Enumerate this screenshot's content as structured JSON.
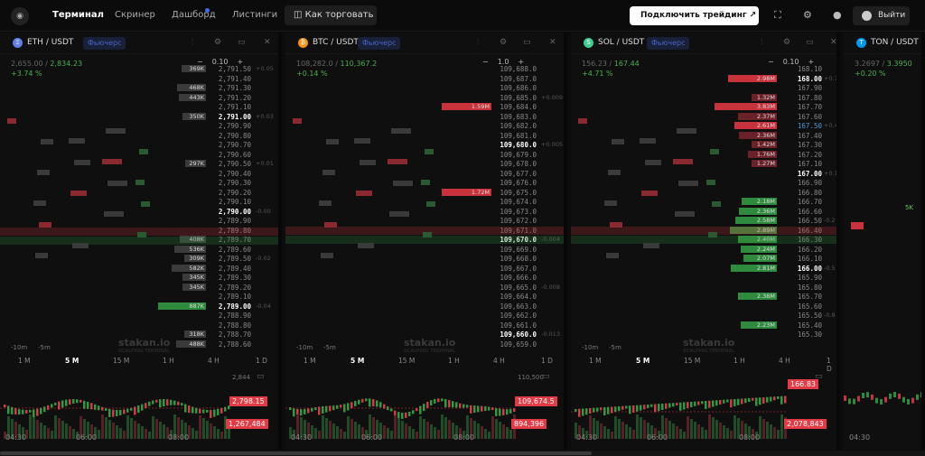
{
  "nav": {
    "terminal": "Терминал",
    "screener": "Скринер",
    "dashboard": "Дашборд",
    "listings": "Листинги",
    "howto": "Как торговать",
    "connect": "Подключить трейдинг",
    "exit": "Выйти"
  },
  "panels": [
    {
      "pair": "ETH / USDT",
      "type": "Фьючерс",
      "low": "2,655.00",
      "high": "2,834.23",
      "change": "+3.74 %",
      "step": "0.10",
      "price_tag": "2,798.15",
      "vol_tag": "1,267,484",
      "corner_price": "2,844",
      "times": [
        "04:30",
        "06:00",
        "08:00"
      ],
      "rows": [
        {
          "p": "2,791.50",
          "v": "369K",
          "c": "+0.05"
        },
        {
          "p": "2,791.40",
          "v": "",
          "c": ""
        },
        {
          "p": "2,791.30",
          "v": "468K",
          "c": ""
        },
        {
          "p": "2,791.20",
          "v": "443K",
          "c": ""
        },
        {
          "p": "2,791.10",
          "v": "",
          "c": ""
        },
        {
          "p": "2,791.00",
          "v": "350K",
          "c": "+0.03",
          "s": "b"
        },
        {
          "p": "2,790.90",
          "v": "",
          "c": ""
        },
        {
          "p": "2,790.80",
          "v": "",
          "c": ""
        },
        {
          "p": "2,790.70",
          "v": "",
          "c": ""
        },
        {
          "p": "2,790.60",
          "v": "",
          "c": ""
        },
        {
          "p": "2,790.50",
          "v": "297K",
          "c": "+0.01"
        },
        {
          "p": "2,790.40",
          "v": "",
          "c": ""
        },
        {
          "p": "2,790.30",
          "v": "",
          "c": ""
        },
        {
          "p": "2,790.20",
          "v": "",
          "c": ""
        },
        {
          "p": "2,790.10",
          "v": "",
          "c": ""
        },
        {
          "p": "2,790.00",
          "v": "",
          "c": "-0.00",
          "s": "b"
        },
        {
          "p": "2,789.90",
          "v": "",
          "c": ""
        },
        {
          "p": "2,789.80",
          "v": "",
          "c": ""
        },
        {
          "p": "2,789.70",
          "v": "408K",
          "c": ""
        },
        {
          "p": "2,789.60",
          "v": "536K",
          "c": ""
        },
        {
          "p": "2,789.50",
          "v": "309K",
          "c": "-0.02"
        },
        {
          "p": "2,789.40",
          "v": "582K",
          "c": ""
        },
        {
          "p": "2,789.30",
          "v": "345K",
          "c": ""
        },
        {
          "p": "2,789.20",
          "v": "345K",
          "c": ""
        },
        {
          "p": "2,789.10",
          "v": "",
          "c": ""
        },
        {
          "p": "2,789.00",
          "v": "887K",
          "c": "-0.04",
          "s": "b"
        },
        {
          "p": "2,788.90",
          "v": "",
          "c": ""
        },
        {
          "p": "2,788.80",
          "v": "",
          "c": ""
        },
        {
          "p": "2,788.70",
          "v": "318K",
          "c": ""
        },
        {
          "p": "2,788.60",
          "v": "488K",
          "c": ""
        }
      ]
    },
    {
      "pair": "BTC / USDT",
      "type": "Фьючерс",
      "low": "108,282.0",
      "high": "110,367.2",
      "change": "+0.14 %",
      "step": "1.0",
      "price_tag": "109,674.5",
      "vol_tag": "894,396",
      "corner_price": "110,500",
      "times": [
        "04:30",
        "06:00",
        "08:00"
      ],
      "rows": [
        {
          "p": "109,688.0",
          "v": "",
          "c": ""
        },
        {
          "p": "109,687.0",
          "v": "",
          "c": ""
        },
        {
          "p": "109,686.0",
          "v": "",
          "c": ""
        },
        {
          "p": "109,685.0",
          "v": "",
          "c": "+0.009"
        },
        {
          "p": "109,684.0",
          "v": "1.59M",
          "c": ""
        },
        {
          "p": "109,683.0",
          "v": "",
          "c": ""
        },
        {
          "p": "109,682.0",
          "v": "",
          "c": ""
        },
        {
          "p": "109,681.0",
          "v": "",
          "c": ""
        },
        {
          "p": "109,680.0",
          "v": "",
          "c": "+0.005",
          "s": "b"
        },
        {
          "p": "109,679.0",
          "v": "",
          "c": ""
        },
        {
          "p": "109,678.0",
          "v": "",
          "c": ""
        },
        {
          "p": "109,677.0",
          "v": "",
          "c": ""
        },
        {
          "p": "109,676.0",
          "v": "",
          "c": ""
        },
        {
          "p": "109,675.0",
          "v": "1.72M",
          "c": ""
        },
        {
          "p": "109,674.0",
          "v": "",
          "c": ""
        },
        {
          "p": "109,673.0",
          "v": "",
          "c": ""
        },
        {
          "p": "109,672.0",
          "v": "",
          "c": ""
        },
        {
          "p": "109,671.0",
          "v": "",
          "c": ""
        },
        {
          "p": "109,670.0",
          "v": "",
          "c": "-0.004",
          "s": "b"
        },
        {
          "p": "109,669.0",
          "v": "",
          "c": ""
        },
        {
          "p": "109,668.0",
          "v": "",
          "c": ""
        },
        {
          "p": "109,667.0",
          "v": "",
          "c": ""
        },
        {
          "p": "109,666.0",
          "v": "",
          "c": ""
        },
        {
          "p": "109,665.0",
          "v": "",
          "c": "-0.008"
        },
        {
          "p": "109,664.0",
          "v": "",
          "c": ""
        },
        {
          "p": "109,663.0",
          "v": "",
          "c": ""
        },
        {
          "p": "109,662.0",
          "v": "",
          "c": ""
        },
        {
          "p": "109,661.0",
          "v": "",
          "c": ""
        },
        {
          "p": "109,660.0",
          "v": "",
          "c": "-0.013",
          "s": "b"
        },
        {
          "p": "109,659.0",
          "v": "",
          "c": ""
        }
      ]
    },
    {
      "pair": "SOL / USDT",
      "type": "Фьючерс",
      "low": "156.23",
      "high": "167.44",
      "change": "+4.71 %",
      "step": "0.10",
      "price_tag": "166.83",
      "vol_tag": "2,078,843",
      "corner_price": "",
      "times": [
        "04:30",
        "06:00",
        "08:00"
      ],
      "rows": [
        {
          "p": "168.10",
          "v": "",
          "c": ""
        },
        {
          "p": "168.00",
          "v": "2.98M",
          "c": "+0.7",
          "s": "b"
        },
        {
          "p": "167.90",
          "v": "",
          "c": ""
        },
        {
          "p": "167.80",
          "v": "1.32M",
          "c": ""
        },
        {
          "p": "167.70",
          "v": "3.83M",
          "c": ""
        },
        {
          "p": "167.60",
          "v": "2.37M",
          "c": ""
        },
        {
          "p": "167.50",
          "v": "2.61M",
          "c": "+0.4",
          "s": "c"
        },
        {
          "p": "167.40",
          "v": "2.36M",
          "c": ""
        },
        {
          "p": "167.30",
          "v": "1.42M",
          "c": ""
        },
        {
          "p": "167.20",
          "v": "1.76M",
          "c": ""
        },
        {
          "p": "167.10",
          "v": "1.27M",
          "c": ""
        },
        {
          "p": "167.00",
          "v": "",
          "c": "+0.1",
          "s": "b"
        },
        {
          "p": "166.90",
          "v": "",
          "c": ""
        },
        {
          "p": "166.80",
          "v": "",
          "c": ""
        },
        {
          "p": "166.70",
          "v": "2.18M",
          "c": ""
        },
        {
          "p": "166.60",
          "v": "2.36M",
          "c": ""
        },
        {
          "p": "166.50",
          "v": "2.58M",
          "c": "-0.2"
        },
        {
          "p": "166.40",
          "v": "2.89M",
          "c": ""
        },
        {
          "p": "166.30",
          "v": "2.40M",
          "c": ""
        },
        {
          "p": "166.20",
          "v": "2.24M",
          "c": ""
        },
        {
          "p": "166.10",
          "v": "2.07M",
          "c": ""
        },
        {
          "p": "166.00",
          "v": "2.81M",
          "c": "-0.5",
          "s": "b"
        },
        {
          "p": "165.90",
          "v": "",
          "c": ""
        },
        {
          "p": "165.80",
          "v": "",
          "c": ""
        },
        {
          "p": "165.70",
          "v": "2.38M",
          "c": ""
        },
        {
          "p": "165.60",
          "v": "",
          "c": ""
        },
        {
          "p": "165.50",
          "v": "",
          "c": "-0.8"
        },
        {
          "p": "165.40",
          "v": "2.23M",
          "c": ""
        },
        {
          "p": "165.30",
          "v": "",
          "c": ""
        }
      ]
    },
    {
      "pair": "TON / USDT",
      "type": "",
      "low": "3.2697",
      "high": "3.3950",
      "change": "+0.20 %",
      "step": "",
      "price_tag": "",
      "vol_tag": "",
      "corner_price": "",
      "times": [
        "04:30"
      ],
      "rows": []
    }
  ],
  "timeframes": [
    "1 M",
    "5 M",
    "15 M",
    "1 H",
    "4 H",
    "1 D"
  ],
  "book_times": [
    "-10m",
    "-5m"
  ],
  "watermark": "stakan.io",
  "watermark_sub": "SCALPING TERMINAL"
}
